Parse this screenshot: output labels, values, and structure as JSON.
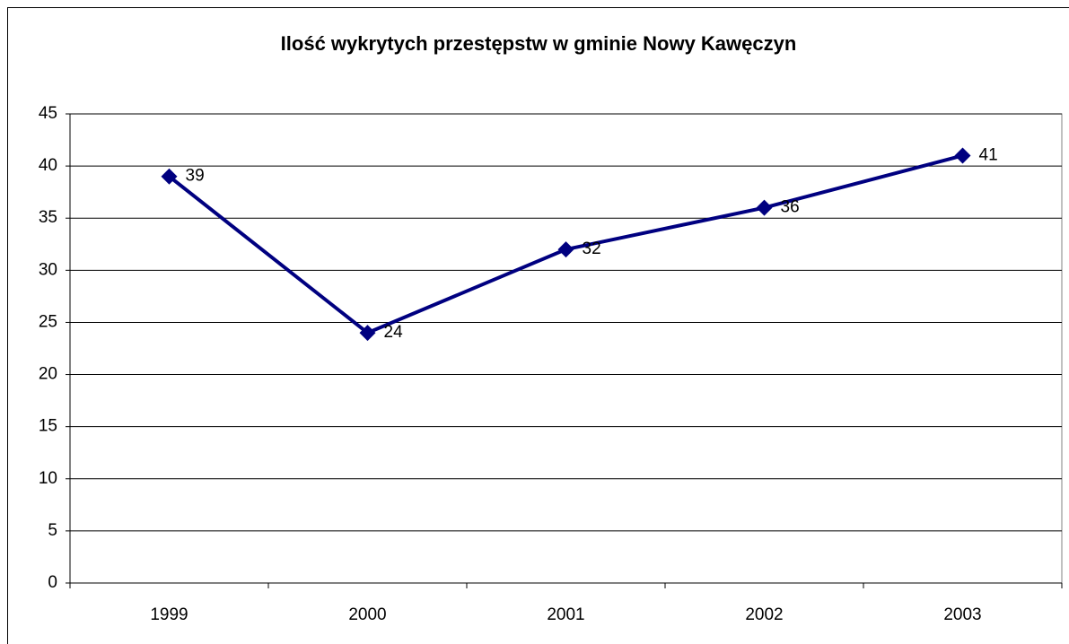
{
  "chart_data": {
    "type": "line",
    "title": "Ilość wykrytych przestępstw w gminie Nowy Kawęczyn",
    "categories": [
      "1999",
      "2000",
      "2001",
      "2002",
      "2003"
    ],
    "values": [
      39,
      24,
      32,
      36,
      41
    ],
    "color": "#000080",
    "ylim": [
      0,
      45
    ],
    "yticks": [
      0,
      5,
      10,
      15,
      20,
      25,
      30,
      35,
      40,
      45
    ],
    "grid": true
  }
}
